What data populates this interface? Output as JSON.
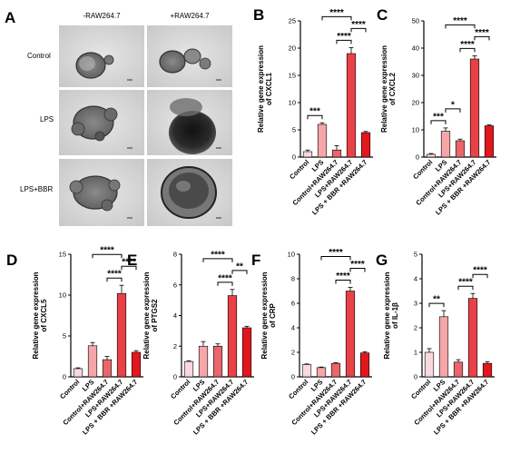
{
  "figure": {
    "panel_a": {
      "letter": "A",
      "col_labels": [
        "-RAW264.7",
        "+RAW264.7"
      ],
      "row_labels": [
        "Control",
        "LPS",
        "LPS+BBR"
      ]
    }
  },
  "chart_data": [
    {
      "panel": "B",
      "type": "bar",
      "ylabel": "Relative gene expression of CXCL1",
      "gene": "CXCL1",
      "categories": [
        "Control",
        "LPS",
        "Control+RAW264.7",
        "LPS+RAW264.7",
        "LPS + BBR +RAW264.7"
      ],
      "values": [
        1,
        6,
        1.3,
        19,
        4.5
      ],
      "errors": [
        0.3,
        0.3,
        0.8,
        1.1,
        0.2
      ],
      "colors": [
        "#f9d9df",
        "#f4a6a8",
        "#e7676d",
        "#e84148",
        "#e0181e"
      ],
      "ylim": [
        0,
        25
      ],
      "yticks": [
        0,
        5,
        10,
        15,
        20,
        25
      ],
      "significance": [
        {
          "from": 0,
          "to": 1,
          "label": "***"
        },
        {
          "from": 1,
          "to": 3,
          "label": "****"
        },
        {
          "from": 2,
          "to": 3,
          "label": "****"
        },
        {
          "from": 3,
          "to": 4,
          "label": "****"
        }
      ]
    },
    {
      "panel": "C",
      "type": "bar",
      "ylabel": "Relative gene expression of CXCL2",
      "gene": "CXCL2",
      "categories": [
        "Control",
        "LPS",
        "Control+RAW264.7",
        "LPS+RAW264.7",
        "LPS + BBR +RAW264.7"
      ],
      "values": [
        1,
        9.5,
        6,
        36,
        11.5
      ],
      "errors": [
        0.3,
        1.2,
        0.6,
        1.2,
        0.4
      ],
      "colors": [
        "#f9d9df",
        "#f4a6a8",
        "#e7676d",
        "#e84148",
        "#e0181e"
      ],
      "ylim": [
        0,
        50
      ],
      "yticks": [
        0,
        10,
        20,
        30,
        40,
        50
      ],
      "significance": [
        {
          "from": 0,
          "to": 1,
          "label": "***"
        },
        {
          "from": 1,
          "to": 2,
          "label": "*"
        },
        {
          "from": 1,
          "to": 3,
          "label": "****"
        },
        {
          "from": 2,
          "to": 3,
          "label": "****"
        },
        {
          "from": 3,
          "to": 4,
          "label": "****"
        }
      ]
    },
    {
      "panel": "D",
      "type": "bar",
      "ylabel": "Relative gene expression of CXCL5",
      "gene": "CXCL5",
      "categories": [
        "Control",
        "LPS",
        "Control+RAW264.7",
        "LPS+RAW264.7",
        "LPS + BBR +RAW264.7"
      ],
      "values": [
        1,
        3.8,
        2.1,
        10.2,
        3
      ],
      "errors": [
        0.1,
        0.4,
        0.4,
        1.0,
        0.2
      ],
      "colors": [
        "#f9d9df",
        "#f4a6a8",
        "#e7676d",
        "#e84148",
        "#e0181e"
      ],
      "ylim": [
        0,
        15
      ],
      "yticks": [
        0,
        5,
        10,
        15
      ],
      "significance": [
        {
          "from": 1,
          "to": 3,
          "label": "****"
        },
        {
          "from": 2,
          "to": 3,
          "label": "****"
        },
        {
          "from": 3,
          "to": 4,
          "label": "****"
        }
      ]
    },
    {
      "panel": "E",
      "type": "bar",
      "ylabel": "Relative gene expression of PTGS2",
      "gene": "PTGS2",
      "categories": [
        "Control",
        "LPS",
        "Control+RAW264.7",
        "LPS+RAW264.7",
        "LPS + BBR +RAW264.7"
      ],
      "values": [
        1,
        2,
        2,
        5.3,
        3.2
      ],
      "errors": [
        0.05,
        0.3,
        0.15,
        0.4,
        0.1
      ],
      "colors": [
        "#f9d9df",
        "#f4a6a8",
        "#e7676d",
        "#e84148",
        "#e0181e"
      ],
      "ylim": [
        0,
        8
      ],
      "yticks": [
        0,
        2,
        4,
        6,
        8
      ],
      "significance": [
        {
          "from": 1,
          "to": 3,
          "label": "****"
        },
        {
          "from": 2,
          "to": 3,
          "label": "****"
        },
        {
          "from": 3,
          "to": 4,
          "label": "**"
        }
      ]
    },
    {
      "panel": "F",
      "type": "bar",
      "ylabel": "Relative gene expression of CRP",
      "gene": "CRP",
      "categories": [
        "Control",
        "LPS",
        "Control+RAW264.7",
        "LPS+RAW264.7",
        "LPS + BBR +RAW264.7"
      ],
      "values": [
        1,
        0.75,
        1.1,
        7,
        1.95
      ],
      "errors": [
        0.05,
        0.05,
        0.05,
        0.3,
        0.1
      ],
      "colors": [
        "#f9d9df",
        "#f4a6a8",
        "#e7676d",
        "#e84148",
        "#e0181e"
      ],
      "ylim": [
        0,
        10
      ],
      "yticks": [
        0,
        2,
        4,
        6,
        8,
        10
      ],
      "significance": [
        {
          "from": 1,
          "to": 3,
          "label": "****"
        },
        {
          "from": 2,
          "to": 3,
          "label": "****"
        },
        {
          "from": 3,
          "to": 4,
          "label": "****"
        }
      ]
    },
    {
      "panel": "G",
      "type": "bar",
      "ylabel": "Relative gene expression of IL-1β",
      "gene": "IL-1β",
      "categories": [
        "Control",
        "LPS",
        "Control+RAW264.7",
        "LPS+RAW264.7",
        "LPS + BBR +RAW264.7"
      ],
      "values": [
        1,
        2.45,
        0.6,
        3.2,
        0.55
      ],
      "errors": [
        0.15,
        0.25,
        0.1,
        0.2,
        0.07
      ],
      "colors": [
        "#f9d9df",
        "#f4a6a8",
        "#e7676d",
        "#e84148",
        "#e0181e"
      ],
      "ylim": [
        0,
        5
      ],
      "yticks": [
        0,
        1,
        2,
        3,
        4,
        5
      ],
      "significance": [
        {
          "from": 0,
          "to": 1,
          "label": "**"
        },
        {
          "from": 2,
          "to": 3,
          "label": "****"
        },
        {
          "from": 3,
          "to": 4,
          "label": "****"
        }
      ]
    }
  ]
}
